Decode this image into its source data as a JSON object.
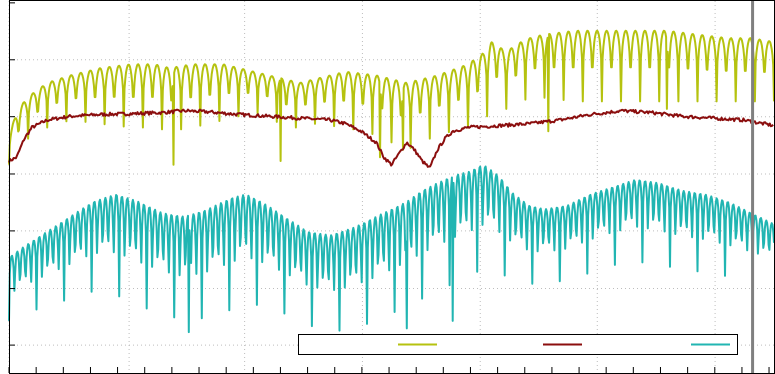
{
  "chart_data": {
    "type": "line",
    "title": "",
    "xlabel": "",
    "ylabel": "",
    "legend_placement": "bottom-right",
    "grid": true,
    "xlim": [
      0,
      100
    ],
    "ylim": [
      0,
      100
    ],
    "x_ticks": [
      0,
      3.55,
      7.1,
      10.65,
      14.19,
      17.74,
      21.29,
      24.84,
      28.39,
      31.94,
      35.48,
      39.03,
      42.58,
      46.13,
      49.68,
      53.23,
      56.77,
      60.32,
      63.87,
      67.42,
      70.97,
      74.52,
      78.06,
      81.61,
      85.16,
      88.71,
      92.26,
      95.81,
      99.35
    ],
    "y_ticks": [
      7.5,
      22.7,
      38.2,
      53.5,
      68.9,
      84.2,
      99.5
    ],
    "x_gridlines": [
      0,
      15.7,
      30.8,
      46.2,
      61.6,
      76.9,
      92.3
    ],
    "y_gridlines": [
      7.5,
      22.7,
      38.2,
      53.5,
      68.9,
      84.2
    ],
    "marker_line_x": 97.2,
    "series": [
      {
        "color": "#b5c20f",
        "x": [
          0,
          1,
          2,
          3,
          5,
          8,
          12,
          16,
          19,
          21,
          24,
          28,
          32,
          34,
          36,
          38,
          40,
          44,
          48,
          50,
          52,
          54,
          56,
          60,
          62,
          63,
          64,
          65,
          66,
          68,
          70,
          74,
          78,
          82,
          86,
          90,
          94,
          97,
          100
        ],
        "y_upper": [
          64,
          70,
          73,
          75,
          78,
          80,
          82,
          83,
          83,
          82,
          83,
          83,
          81,
          80,
          79,
          78,
          79,
          81,
          80,
          79,
          78,
          79,
          80,
          83,
          86,
          89,
          88,
          86,
          88,
          90,
          91,
          92,
          92,
          92,
          92,
          91,
          90,
          90,
          89
        ],
        "y_floor": [
          56,
          59,
          62,
          64,
          66,
          68,
          67,
          66,
          66,
          65,
          66,
          68,
          70,
          69,
          66,
          66,
          67,
          66,
          64,
          62,
          60,
          62,
          64,
          66,
          68,
          70,
          72,
          71,
          72,
          74,
          74,
          73,
          73,
          73,
          73,
          73,
          73,
          73,
          73
        ],
        "spikes": [
          [
            21.5,
            56
          ],
          [
            35.5,
            57
          ],
          [
            48.5,
            58
          ],
          [
            51.5,
            60
          ],
          [
            70.5,
            65
          ],
          [
            86,
            71
          ]
        ],
        "period": 1.25
      },
      {
        "color": "#8b0e0e",
        "x": [
          0,
          1,
          2,
          3,
          5,
          8,
          12,
          16,
          20,
          23,
          26,
          30,
          34,
          38,
          42,
          44,
          46,
          48,
          49,
          50,
          51,
          52,
          53,
          54,
          55,
          56,
          57,
          58,
          60,
          64,
          68,
          72,
          76,
          80,
          84,
          88,
          92,
          96,
          100
        ],
        "y": [
          57,
          58,
          63,
          66,
          68,
          69,
          69.5,
          69.7,
          70,
          70.5,
          70.2,
          69.5,
          69,
          68.5,
          68,
          67,
          65,
          62,
          58,
          56,
          59,
          62,
          60,
          57,
          55,
          60,
          63,
          65,
          66,
          66.5,
          67,
          68,
          69.5,
          70.5,
          70,
          69,
          68.5,
          68,
          66.5
        ]
      },
      {
        "color": "#21b5b2",
        "x": [
          0,
          2,
          5,
          8,
          11,
          14,
          17,
          20,
          23,
          26,
          29,
          31,
          33,
          36,
          39,
          42,
          45,
          48,
          50,
          52,
          54,
          56,
          58,
          60,
          62,
          64,
          66,
          68,
          70,
          73,
          76,
          79,
          82,
          85,
          88,
          91,
          94,
          97,
          100
        ],
        "y_upper": [
          31,
          34,
          38,
          42,
          46,
          48,
          46,
          43,
          42,
          44,
          47,
          48,
          46,
          42,
          38,
          37,
          39,
          42,
          44,
          46,
          49,
          51,
          53,
          54,
          56,
          53,
          48,
          45,
          44,
          45,
          48,
          50,
          52,
          51,
          49,
          48,
          46,
          43,
          40
        ],
        "y_floor": [
          14,
          16,
          18,
          20,
          22,
          21,
          18,
          16,
          14,
          15,
          17,
          19,
          18,
          16,
          13,
          11,
          12,
          14,
          16,
          18,
          20,
          22,
          24,
          26,
          28,
          27,
          25,
          24,
          24,
          25,
          27,
          29,
          30,
          29,
          28,
          27,
          26,
          25,
          24
        ],
        "spikes": [
          [
            23.5,
            11
          ],
          [
            52,
            12
          ],
          [
            58,
            14
          ]
        ],
        "period": 0.72
      }
    ]
  }
}
